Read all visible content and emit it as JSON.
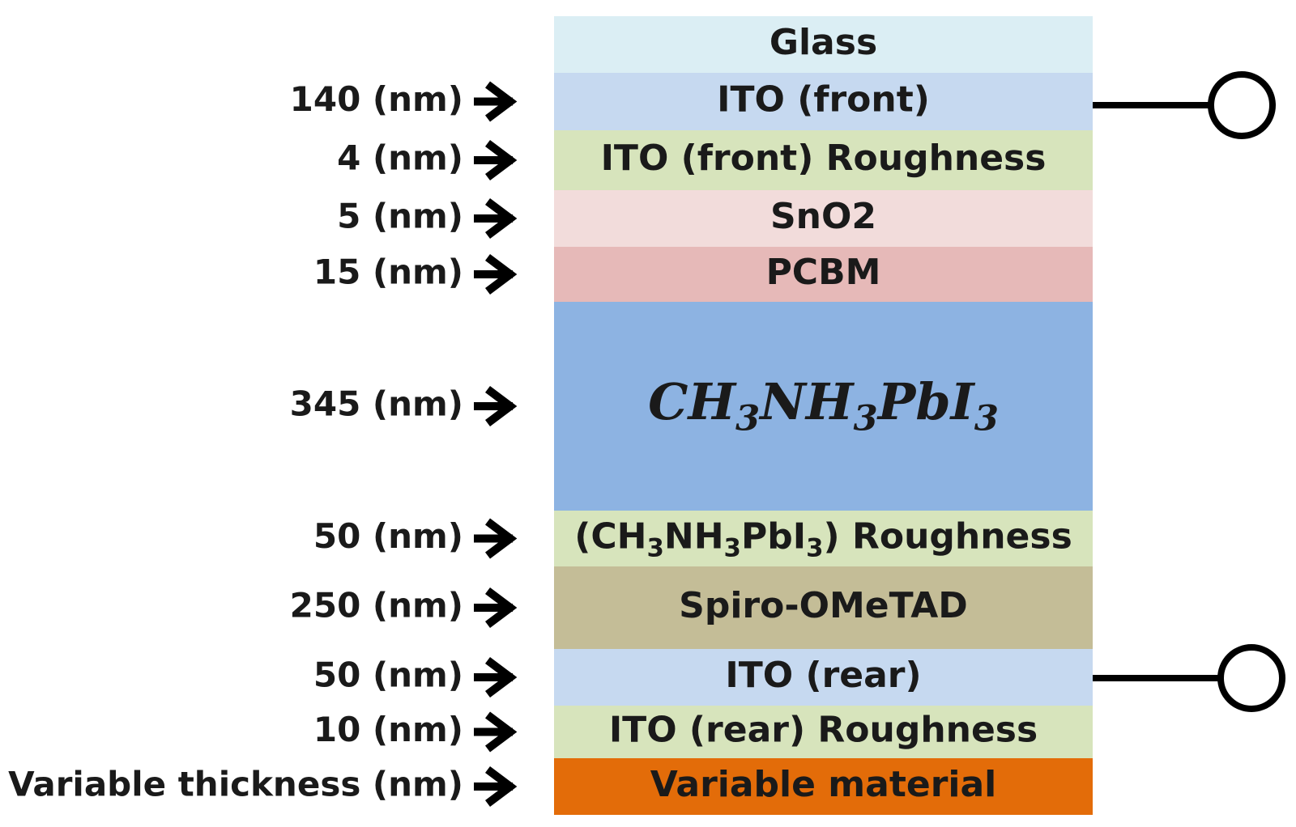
{
  "layers": [
    {
      "name": "Glass",
      "color": "#dbeef4"
    },
    {
      "name": "ITO (front)",
      "thickness": "140 (nm)",
      "color": "#c6d9f0"
    },
    {
      "name": "ITO (front) Roughness",
      "thickness": "4 (nm)",
      "color": "#d7e4bc"
    },
    {
      "name": "SnO2",
      "thickness": "5 (nm)",
      "color": "#f2dcdb"
    },
    {
      "name": "PCBM",
      "thickness": "15 (nm)",
      "color": "#e6b9b8"
    },
    {
      "name_parts": [
        {
          "text": "CH"
        },
        {
          "text": "3",
          "sub": true
        },
        {
          "text": "NH"
        },
        {
          "text": "3",
          "sub": true
        },
        {
          "text": "PbI"
        },
        {
          "text": "3",
          "sub": true
        }
      ],
      "thickness": "345 (nm)",
      "color": "#8db3e2",
      "text_color": "#ffffff"
    },
    {
      "name_parts": [
        {
          "text": "(CH"
        },
        {
          "text": "3",
          "sub": true
        },
        {
          "text": "NH"
        },
        {
          "text": "3",
          "sub": true
        },
        {
          "text": "PbI"
        },
        {
          "text": "3",
          "sub": true
        },
        {
          "text": ") Roughness"
        }
      ],
      "thickness": "50 (nm)",
      "color": "#d7e4bc"
    },
    {
      "name": "Spiro-OMeTAD",
      "thickness": "250 (nm)",
      "color": "#c4bd97"
    },
    {
      "name": "ITO (rear)",
      "thickness": "50 (nm)",
      "color": "#c6d9f0"
    },
    {
      "name": "ITO (rear) Roughness",
      "thickness": "10 (nm)",
      "color": "#d7e4bc"
    },
    {
      "name": "Variable material",
      "thickness": "Variable thickness (nm)",
      "color": "#e36c09"
    }
  ]
}
